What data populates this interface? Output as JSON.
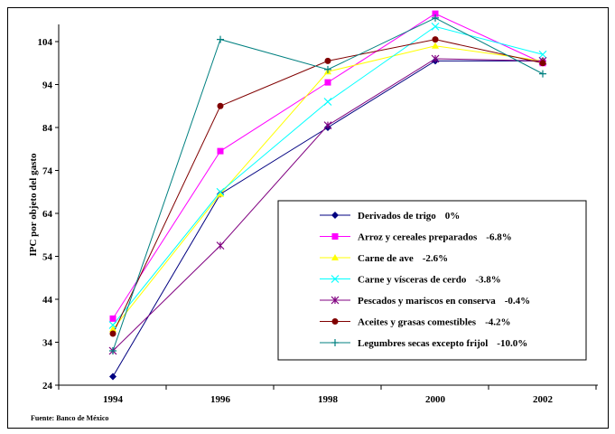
{
  "chart_data": {
    "type": "line",
    "title": "",
    "xlabel": "",
    "ylabel": "IPC por objeto del gasto",
    "x": [
      "1994",
      "1996",
      "1998",
      "2000",
      "2002"
    ],
    "yticks": [
      "24",
      "34",
      "44",
      "54",
      "64",
      "74",
      "84",
      "94",
      "104"
    ],
    "ylim": [
      24,
      108
    ],
    "grid": false,
    "legend_position": "lower-right",
    "series": [
      {
        "name": "Derivados de trigo",
        "pct": "0%",
        "color": "#000080",
        "marker": "diamond",
        "values": [
          26,
          68.5,
          84,
          99.5,
          99.5
        ]
      },
      {
        "name": "Arroz y cereales preparados",
        "pct": "-6.8%",
        "color": "#FF00FF",
        "marker": "square",
        "values": [
          39.5,
          78.5,
          94.5,
          110.5,
          99
        ]
      },
      {
        "name": "Carne de ave",
        "pct": "-2.6%",
        "color": "#FFFF00",
        "marker": "triangle",
        "values": [
          37,
          68.5,
          97,
          103,
          99.5
        ]
      },
      {
        "name": "Carne y vísceras de cerdo",
        "pct": "-3.8%",
        "color": "#00FFFF",
        "marker": "x",
        "values": [
          38,
          69,
          90,
          107.5,
          101
        ]
      },
      {
        "name": "Pescados y mariscos en conserva",
        "pct": "-0.4%",
        "color": "#800080",
        "marker": "star",
        "values": [
          32,
          56.5,
          84.5,
          100,
          99.5
        ]
      },
      {
        "name": "Aceites y grasas comestibles",
        "pct": "-4.2%",
        "color": "#800000",
        "marker": "circle",
        "values": [
          36,
          89,
          99.5,
          104.5,
          99
        ]
      },
      {
        "name": "Legumbres secas excepto frijol",
        "pct": "-10.0%",
        "color": "#008080",
        "marker": "plus",
        "values": [
          32,
          104.5,
          97.5,
          109.5,
          96.5
        ]
      }
    ],
    "source": "Fuente: Banco de México"
  }
}
